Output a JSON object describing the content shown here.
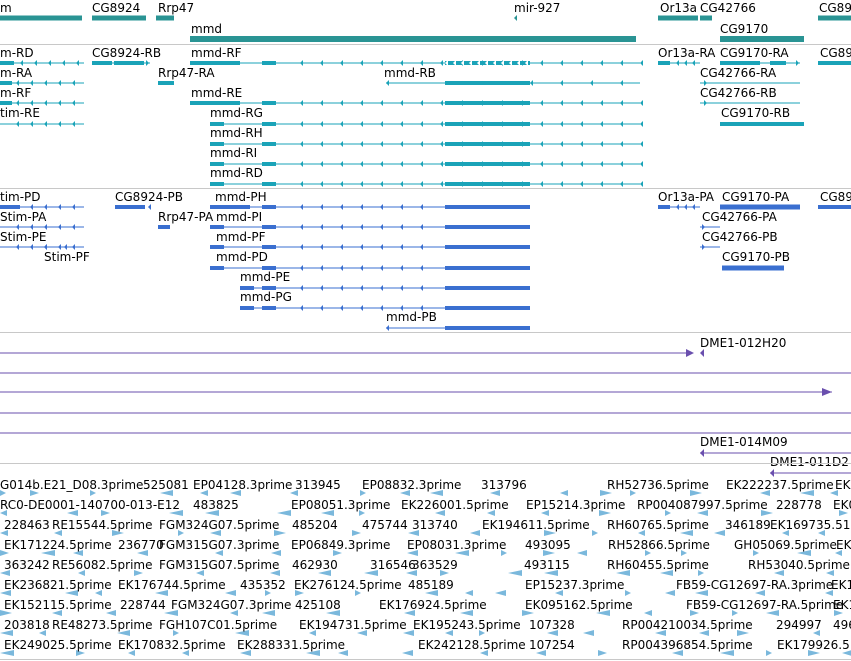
{
  "colors": {
    "gene": "#2a9494",
    "transcript_rna": "#1aa3b8",
    "transcript_protein": "#3a6fd0",
    "clone": "#6a4fae",
    "est": "#7ab8dc",
    "separator": "#c8c8c8"
  },
  "tracks": {
    "genes": {
      "labels": [
        {
          "text": "m"
        },
        {
          "text": "CG8924"
        },
        {
          "text": "Rrp47"
        },
        {
          "text": "mir-927"
        },
        {
          "text": "Or13a"
        },
        {
          "text": "CG42766"
        },
        {
          "text": "CG89"
        },
        {
          "text": "mmd"
        },
        {
          "text": "CG9170"
        }
      ]
    },
    "rna_transcripts": {
      "labels": [
        {
          "text": "m-RD"
        },
        {
          "text": "CG8924-RB"
        },
        {
          "text": "mmd-RF"
        },
        {
          "text": "Or13a-RA"
        },
        {
          "text": "CG9170-RA"
        },
        {
          "text": "CG89"
        },
        {
          "text": "m-RA"
        },
        {
          "text": "Rrp47-RA"
        },
        {
          "text": "mmd-RB"
        },
        {
          "text": "CG42766-RA"
        },
        {
          "text": "m-RF"
        },
        {
          "text": "mmd-RE"
        },
        {
          "text": "CG42766-RB"
        },
        {
          "text": "tim-RE"
        },
        {
          "text": "mmd-RG"
        },
        {
          "text": "CG9170-RB"
        },
        {
          "text": "mmd-RH"
        },
        {
          "text": "mmd-RI"
        },
        {
          "text": "mmd-RD"
        }
      ]
    },
    "protein_transcripts": {
      "labels": [
        {
          "text": "tim-PD"
        },
        {
          "text": "CG8924-PB"
        },
        {
          "text": "mmd-PH"
        },
        {
          "text": "Or13a-PA"
        },
        {
          "text": "CG9170-PA"
        },
        {
          "text": "CG89"
        },
        {
          "text": "Stim-PA"
        },
        {
          "text": "Rrp47-PA"
        },
        {
          "text": "mmd-PI"
        },
        {
          "text": "CG42766-PA"
        },
        {
          "text": "Stim-PE"
        },
        {
          "text": "mmd-PF"
        },
        {
          "text": "CG42766-PB"
        },
        {
          "text": "Stim-PF"
        },
        {
          "text": "mmd-PD"
        },
        {
          "text": "CG9170-PB"
        },
        {
          "text": "mmd-PE"
        },
        {
          "text": "mmd-PG"
        },
        {
          "text": "mmd-PB"
        }
      ]
    },
    "clones": {
      "labels": [
        {
          "text": "DME1-012H20"
        },
        {
          "text": "DME1-014M09"
        },
        {
          "text": "DME1-011D2"
        }
      ]
    },
    "ests": {
      "labels": [
        {
          "text": "G014b.E21_D08.3prime"
        },
        {
          "text": "525081"
        },
        {
          "text": "EP04128.3prime"
        },
        {
          "text": "313945"
        },
        {
          "text": "EP08832.3prime"
        },
        {
          "text": "313796"
        },
        {
          "text": "RH52736.5prime"
        },
        {
          "text": "EK222237.5prime"
        },
        {
          "text": "EK"
        },
        {
          "text": "RC0-DE0001-140700-013-E12"
        },
        {
          "text": "483825"
        },
        {
          "text": "EP08051.3prime"
        },
        {
          "text": "EK226001.5prime"
        },
        {
          "text": "EP15214.3prime"
        },
        {
          "text": "RP004087997.5prime"
        },
        {
          "text": "228778"
        },
        {
          "text": "EK0"
        },
        {
          "text": "228463"
        },
        {
          "text": "RE15544.5prime"
        },
        {
          "text": "FGM324G07.5prime"
        },
        {
          "text": "485204"
        },
        {
          "text": "475744"
        },
        {
          "text": "313740"
        },
        {
          "text": "EK194611.5prime"
        },
        {
          "text": "RH60765.5prime"
        },
        {
          "text": "346189"
        },
        {
          "text": "EK169735.51"
        },
        {
          "text": "EK171224.5prime"
        },
        {
          "text": "236770"
        },
        {
          "text": "FGM315G07.3prime"
        },
        {
          "text": "EP06849.3prime"
        },
        {
          "text": "EP08031.3prime"
        },
        {
          "text": "493095"
        },
        {
          "text": "RH52866.5prime"
        },
        {
          "text": "GH05069.5prime"
        },
        {
          "text": "EK"
        },
        {
          "text": "363242"
        },
        {
          "text": "RE56082.5prime"
        },
        {
          "text": "FGM315G07.5prime"
        },
        {
          "text": "462930"
        },
        {
          "text": "316546"
        },
        {
          "text": "363529"
        },
        {
          "text": "493115"
        },
        {
          "text": "RH60455.5prime"
        },
        {
          "text": "RH53040.5prime"
        },
        {
          "text": "EK236821.5prime"
        },
        {
          "text": "EK176744.5prime"
        },
        {
          "text": "435352"
        },
        {
          "text": "EK276124.5prime"
        },
        {
          "text": "485189"
        },
        {
          "text": "EP15237.3prime"
        },
        {
          "text": "FB59-CG12697-RA.3prime"
        },
        {
          "text": "EK1"
        },
        {
          "text": "EK152115.5prime"
        },
        {
          "text": "228744"
        },
        {
          "text": "FGM324G07.3prime"
        },
        {
          "text": "425108"
        },
        {
          "text": "EK176924.5prime"
        },
        {
          "text": "EK095162.5prime"
        },
        {
          "text": "FB59-CG12697-RA.5prime"
        },
        {
          "text": "EK1"
        },
        {
          "text": "203818"
        },
        {
          "text": "RE48273.5prime"
        },
        {
          "text": "FGH107C01.5prime"
        },
        {
          "text": "EK194731.5prime"
        },
        {
          "text": "EK195243.5prime"
        },
        {
          "text": "107328"
        },
        {
          "text": "RP004210034.5prime"
        },
        {
          "text": "294997"
        },
        {
          "text": "496"
        },
        {
          "text": "EK249025.5prime"
        },
        {
          "text": "EK170832.5prime"
        },
        {
          "text": "EK28833"
        },
        {
          "text": "1.5prime"
        },
        {
          "text": "EK242128.5prime"
        },
        {
          "text": "107254"
        },
        {
          "text": "RP004396854.5prime"
        },
        {
          "text": "EK179926.5"
        }
      ]
    }
  }
}
